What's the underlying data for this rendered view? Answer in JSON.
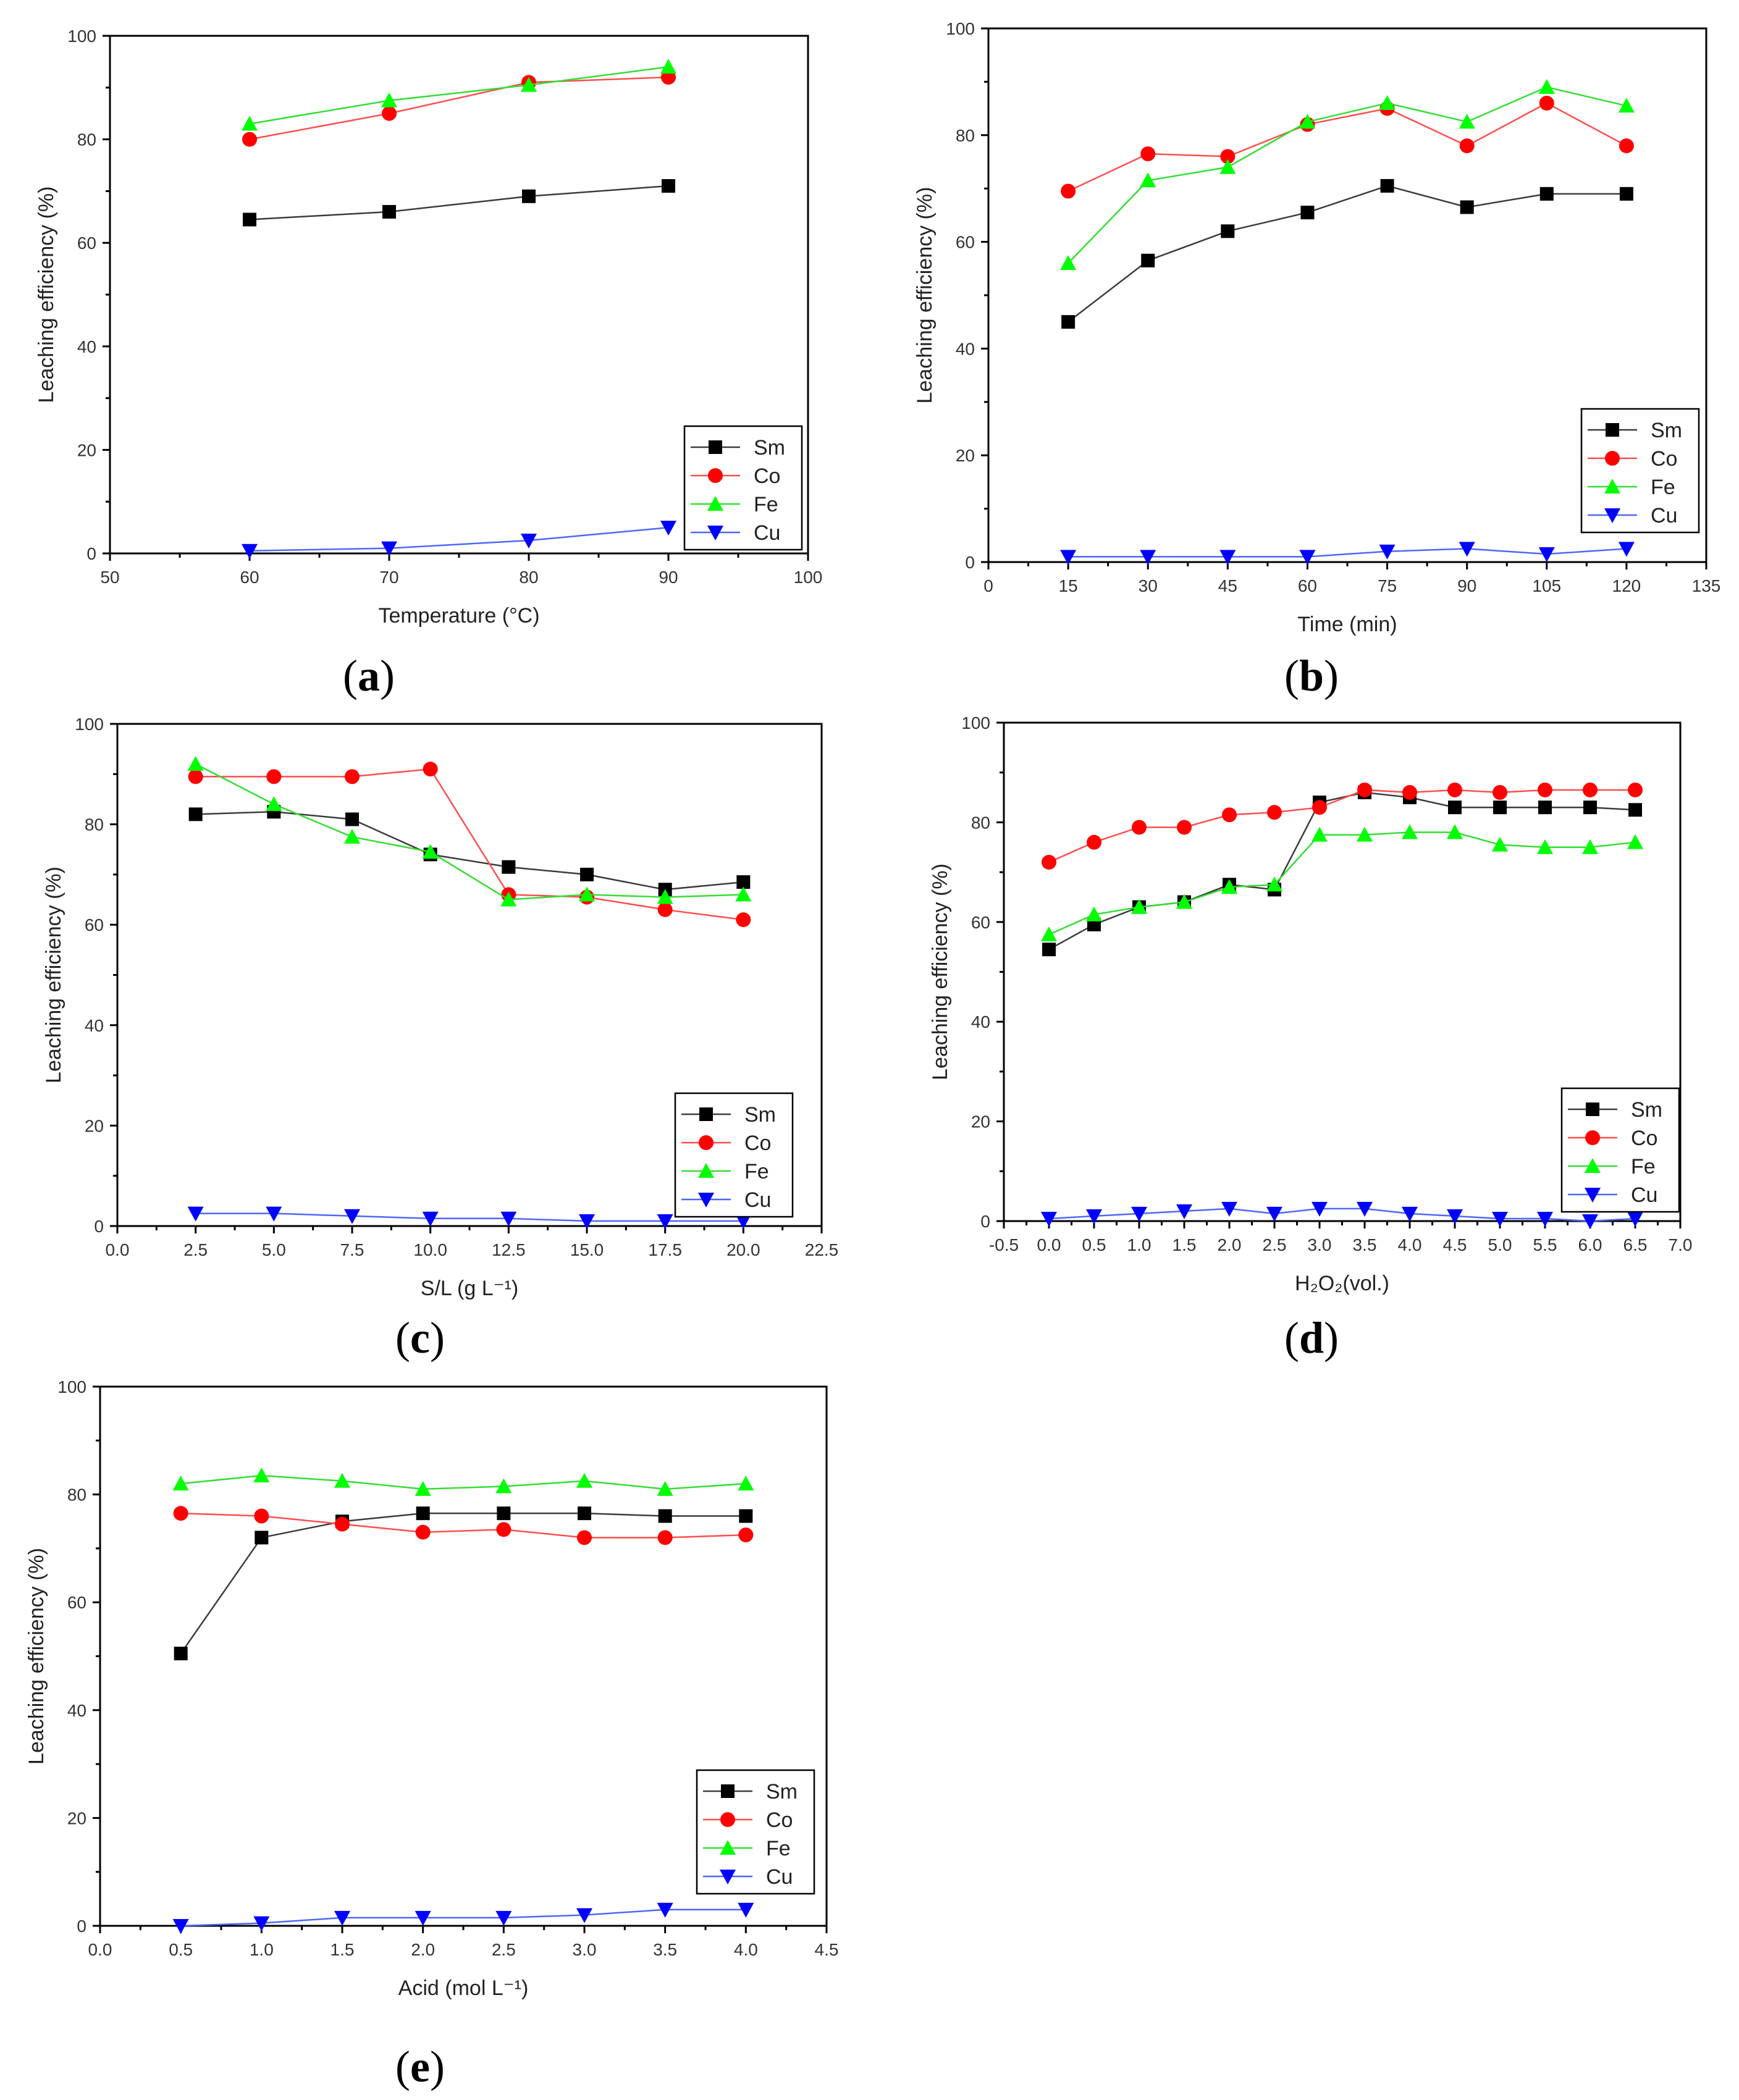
{
  "figure": {
    "panel_labels": [
      "(a)",
      "(b)",
      "(c)",
      "(d)",
      "(e)"
    ]
  },
  "series_styles": [
    {
      "name": "Sm",
      "marker": "square",
      "line_color": "#3b3b3b",
      "marker_color": "#000000"
    },
    {
      "name": "Co",
      "marker": "circle",
      "line_color": "#ff4d4d",
      "marker_color": "#ff0000"
    },
    {
      "name": "Fe",
      "marker": "triangle-up",
      "line_color": "#33dd33",
      "marker_color": "#00ff00"
    },
    {
      "name": "Cu",
      "marker": "triangle-down",
      "line_color": "#4d66ff",
      "marker_color": "#0000ff"
    }
  ],
  "chart_data": [
    {
      "type": "line",
      "panel": "(a)",
      "xlabel": "Temperature (°C)",
      "ylabel": "Leaching efficiency (%)",
      "xlim": [
        50,
        100
      ],
      "ylim": [
        0,
        100
      ],
      "x_ticks": [
        "50",
        "60",
        "70",
        "80",
        "90",
        "100"
      ],
      "y_ticks": [
        "0",
        "20",
        "40",
        "60",
        "80",
        "100"
      ],
      "x": [
        60,
        70,
        80,
        90
      ],
      "series": [
        {
          "name": "Sm",
          "values": [
            64.5,
            66,
            69,
            71
          ]
        },
        {
          "name": "Co",
          "values": [
            80,
            85,
            91,
            92
          ]
        },
        {
          "name": "Fe",
          "values": [
            83,
            87.5,
            90.5,
            94
          ]
        },
        {
          "name": "Cu",
          "values": [
            0.5,
            1,
            2.5,
            5
          ]
        }
      ]
    },
    {
      "type": "line",
      "panel": "(b)",
      "xlabel": "Time (min)",
      "ylabel": "Leaching efficiency (%)",
      "xlim": [
        0,
        135
      ],
      "ylim": [
        0,
        100
      ],
      "x_ticks": [
        "0",
        "15",
        "30",
        "45",
        "60",
        "75",
        "90",
        "105",
        "120",
        "135"
      ],
      "y_ticks": [
        "0",
        "20",
        "40",
        "60",
        "80",
        "100"
      ],
      "x": [
        15,
        30,
        45,
        60,
        75,
        90,
        105,
        120
      ],
      "series": [
        {
          "name": "Sm",
          "values": [
            45,
            56.5,
            62,
            65.5,
            70.5,
            66.5,
            69,
            69
          ]
        },
        {
          "name": "Co",
          "values": [
            69.5,
            76.5,
            76,
            82,
            85,
            78,
            86,
            78
          ]
        },
        {
          "name": "Fe",
          "values": [
            56,
            71.5,
            74,
            82.5,
            86,
            82.5,
            89,
            85.5
          ]
        },
        {
          "name": "Cu",
          "values": [
            1,
            1,
            1,
            1,
            2,
            2.5,
            1.5,
            2.5
          ]
        }
      ]
    },
    {
      "type": "line",
      "panel": "(c)",
      "xlabel": "S/L (g L⁻¹)",
      "ylabel": "Leaching efficiency (%)",
      "xlim": [
        0,
        22.5
      ],
      "ylim": [
        0,
        100
      ],
      "x_ticks": [
        "0.0",
        "2.5",
        "5.0",
        "7.5",
        "10.0",
        "12.5",
        "15.0",
        "17.5",
        "20.0",
        "22.5"
      ],
      "y_ticks": [
        "0",
        "20",
        "40",
        "60",
        "80",
        "100"
      ],
      "x": [
        2.5,
        5,
        7.5,
        10,
        12.5,
        15,
        17.5,
        20
      ],
      "series": [
        {
          "name": "Sm",
          "values": [
            82,
            82.5,
            81,
            74,
            71.5,
            70,
            67,
            68.5
          ]
        },
        {
          "name": "Co",
          "values": [
            89.5,
            89.5,
            89.5,
            91,
            66,
            65.5,
            63,
            61
          ]
        },
        {
          "name": "Fe",
          "values": [
            92,
            84,
            77.5,
            74.5,
            65,
            66,
            65.5,
            66
          ]
        },
        {
          "name": "Cu",
          "values": [
            2.5,
            2.5,
            2,
            1.5,
            1.5,
            1,
            1,
            1
          ]
        }
      ]
    },
    {
      "type": "line",
      "panel": "(d)",
      "xlabel": "H₂O₂(vol.)",
      "ylabel": "Leaching efficiency (%)",
      "xlim": [
        -0.5,
        7.0
      ],
      "ylim": [
        0,
        100
      ],
      "x_ticks": [
        "-0.5",
        "0.0",
        "0.5",
        "1.0",
        "1.5",
        "2.0",
        "2.5",
        "3.0",
        "3.5",
        "4.0",
        "4.5",
        "5.0",
        "5.5",
        "6.0",
        "6.5",
        "7.0"
      ],
      "y_ticks": [
        "0",
        "20",
        "40",
        "60",
        "80",
        "100"
      ],
      "x": [
        0,
        0.5,
        1,
        1.5,
        2,
        2.5,
        3,
        3.5,
        4,
        4.5,
        5,
        5.5,
        6,
        6.5
      ],
      "series": [
        {
          "name": "Sm",
          "values": [
            54.5,
            59.5,
            63,
            64,
            67.5,
            66.5,
            84,
            86,
            85,
            83,
            83,
            83,
            83,
            82.5
          ]
        },
        {
          "name": "Co",
          "values": [
            72,
            76,
            79,
            79,
            81.5,
            82,
            83,
            86.5,
            86,
            86.5,
            86,
            86.5,
            86.5,
            86.5
          ]
        },
        {
          "name": "Fe",
          "values": [
            57.5,
            61.5,
            63,
            64,
            67,
            67.5,
            77.5,
            77.5,
            78,
            78,
            75.5,
            75,
            75,
            76
          ]
        },
        {
          "name": "Cu",
          "values": [
            0.5,
            1,
            1.5,
            2,
            2.5,
            1.5,
            2.5,
            2.5,
            1.5,
            1,
            0.5,
            0.5,
            0,
            0.5
          ]
        }
      ]
    },
    {
      "type": "line",
      "panel": "(e)",
      "xlabel": "Acid (mol L⁻¹)",
      "ylabel": "Leaching efficiency (%)",
      "xlim": [
        0,
        4.5
      ],
      "ylim": [
        0,
        100
      ],
      "x_ticks": [
        "0.0",
        "0.5",
        "1.0",
        "1.5",
        "2.0",
        "2.5",
        "3.0",
        "3.5",
        "4.0",
        "4.5"
      ],
      "y_ticks": [
        "0",
        "20",
        "40",
        "60",
        "80",
        "100"
      ],
      "x": [
        0.5,
        1,
        1.5,
        2,
        2.5,
        3,
        3.5,
        4
      ],
      "series": [
        {
          "name": "Sm",
          "values": [
            50.5,
            72,
            75,
            76.5,
            76.5,
            76.5,
            76,
            76
          ]
        },
        {
          "name": "Co",
          "values": [
            76.5,
            76,
            74.5,
            73,
            73.5,
            72,
            72,
            72.5
          ]
        },
        {
          "name": "Fe",
          "values": [
            82,
            83.5,
            82.5,
            81,
            81.5,
            82.5,
            81,
            82
          ]
        },
        {
          "name": "Cu",
          "values": [
            0,
            0.5,
            1.5,
            1.5,
            1.5,
            2,
            3,
            3
          ]
        }
      ]
    }
  ]
}
